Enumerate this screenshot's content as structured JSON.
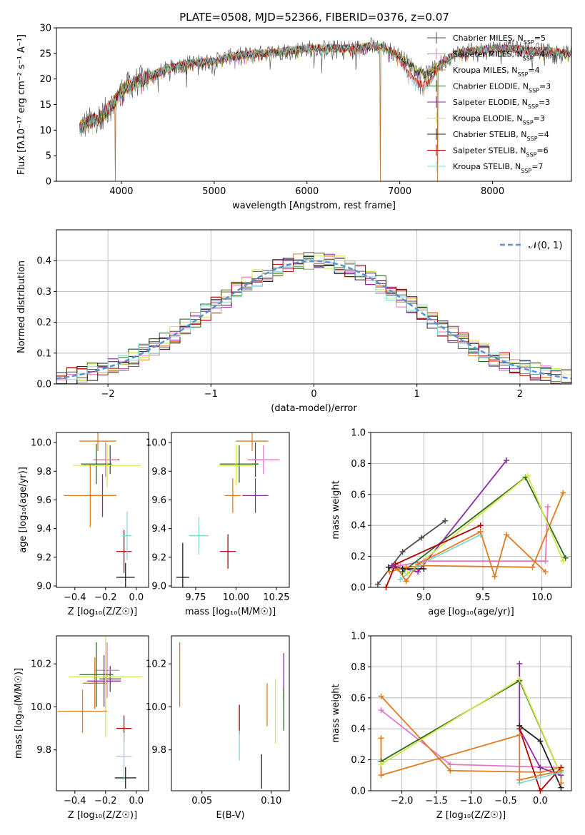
{
  "title": "PLATE=0508, MJD=52366, FIBERID=0376, z=0.07",
  "models": [
    {
      "name": "Chabrier MILES",
      "nssp": 5,
      "color": "#4d4d4d"
    },
    {
      "name": "Salpeter MILES",
      "nssp": 4,
      "color": "#e377c2"
    },
    {
      "name": "Kroupa MILES",
      "nssp": 4,
      "color": "#e07b1f"
    },
    {
      "name": "Chabrier ELODIE",
      "nssp": 3,
      "color": "#2e6b1e"
    },
    {
      "name": "Salpeter ELODIE",
      "nssp": 3,
      "color": "#8c2aa7"
    },
    {
      "name": "Kroupa ELODIE",
      "nssp": 3,
      "color": "#d2e84a"
    },
    {
      "name": "Chabrier STELIB",
      "nssp": 4,
      "color": "#222222"
    },
    {
      "name": "Salpeter STELIB",
      "nssp": 6,
      "color": "#b00000"
    },
    {
      "name": "Kroupa STELIB",
      "nssp": 7,
      "color": "#80d8d8"
    }
  ],
  "chart_data": [
    {
      "id": "spectrum",
      "type": "line",
      "xlabel": "wavelength [Angstrom, rest frame]",
      "ylabel": "Flux [fλ10⁻¹⁷ erg cm⁻² s⁻¹ A⁻¹]",
      "xlim": [
        3300,
        8850
      ],
      "ylim": [
        0,
        30
      ],
      "xticks": [
        4000,
        5000,
        6000,
        7000,
        8000
      ],
      "yticks": [
        0,
        5,
        10,
        15,
        20,
        25,
        30
      ],
      "continuum": {
        "x": [
          3550,
          3650,
          3800,
          3900,
          4000,
          4100,
          4300,
          4500,
          4700,
          5000,
          5200,
          5500,
          5800,
          6000,
          6200,
          6500,
          6700,
          6850,
          7000,
          7100,
          7200,
          7300,
          7400,
          7600,
          7800,
          8000,
          8200,
          8400,
          8600,
          8800
        ],
        "y": [
          10.5,
          11.5,
          13.0,
          15.0,
          17.5,
          19.0,
          20.5,
          22.0,
          23.0,
          23.5,
          24.5,
          25.0,
          25.5,
          26.0,
          26.0,
          26.0,
          26.5,
          26.0,
          24.5,
          23.0,
          21.5,
          21.0,
          22.5,
          25.0,
          25.5,
          26.0,
          26.0,
          25.5,
          25.5,
          25.0
        ]
      },
      "dips": [
        {
          "x": 3934,
          "y": 0
        },
        {
          "x": 6790,
          "y": 0
        },
        {
          "x": 7410,
          "y": 0
        }
      ],
      "legend": "top-right"
    },
    {
      "id": "residuals",
      "type": "histogram",
      "xlabel": "(data-model)/error",
      "ylabel": "Normed distribution",
      "xlim": [
        -2.5,
        2.5
      ],
      "ylim": [
        0,
        0.5
      ],
      "xticks": [
        -2,
        -1,
        0,
        1,
        2
      ],
      "yticks": [
        0.0,
        0.1,
        0.2,
        0.3,
        0.4
      ],
      "bin_width": 0.1,
      "reference": {
        "name": "𝒩(0, 1)",
        "color": "#5b8fd4"
      },
      "legend": "top-right",
      "grid": true
    },
    {
      "id": "age-vs-Z",
      "type": "scatter",
      "xlabel": "Z [log₁₀(Z/Z☉)]",
      "ylabel": "age  [log₁₀(age/yr)]",
      "xlim": [
        -0.52,
        0.08
      ],
      "ylim": [
        8.99,
        10.07
      ],
      "xticks": [
        -0.4,
        -0.2,
        0.0
      ],
      "yticks": [
        9.0,
        9.2,
        9.4,
        9.6,
        9.8,
        10.0
      ],
      "points": [
        {
          "model": 0,
          "x": -0.17,
          "y": 9.88,
          "xerr": 0.06,
          "yerr": 0.1
        },
        {
          "model": 1,
          "x": -0.2,
          "y": 9.88,
          "xerr": 0.08,
          "yerr": 0.12
        },
        {
          "model": 2,
          "x": -0.25,
          "y": 10.01,
          "xerr": 0.12,
          "yerr": 0.07
        },
        {
          "model": 3,
          "x": -0.26,
          "y": 9.85,
          "xerr": 0.1,
          "yerr": 0.14
        },
        {
          "model": 4,
          "x": -0.22,
          "y": 9.63,
          "xerr": 0.09,
          "yerr": 0.15
        },
        {
          "model": 5,
          "x": -0.19,
          "y": 9.84,
          "xerr": 0.22,
          "yerr": 0.15
        },
        {
          "model": 6,
          "x": -0.07,
          "y": 9.06,
          "xerr": 0.06,
          "yerr": 0.1
        },
        {
          "model": 7,
          "x": -0.08,
          "y": 9.24,
          "xerr": 0.05,
          "yerr": 0.15
        },
        {
          "model": 8,
          "x": -0.06,
          "y": 9.35,
          "xerr": 0.03,
          "yerr": 0.17
        },
        {
          "model": 2,
          "x": -0.3,
          "y": 9.63,
          "xerr": 0.17,
          "yerr": 0.22
        }
      ]
    },
    {
      "id": "age-vs-mass",
      "type": "scatter",
      "xlabel": "mass [log₁₀(M/M☉)]",
      "ylabel": "",
      "xlim": [
        9.6,
        10.33
      ],
      "ylim": [
        8.99,
        10.07
      ],
      "xticks": [
        9.75,
        10.0,
        10.25
      ],
      "yticks": [
        9.0,
        9.2,
        9.4,
        9.6,
        9.8,
        10.0
      ],
      "points": [
        {
          "model": 0,
          "x": 10.12,
          "y": 9.88,
          "xerr": 0.04,
          "yerr": 0.12
        },
        {
          "model": 1,
          "x": 10.17,
          "y": 9.88,
          "xerr": 0.1,
          "yerr": 0.1
        },
        {
          "model": 2,
          "x": 10.1,
          "y": 10.01,
          "xerr": 0.1,
          "yerr": 0.07
        },
        {
          "model": 3,
          "x": 10.02,
          "y": 9.85,
          "xerr": 0.12,
          "yerr": 0.13
        },
        {
          "model": 4,
          "x": 10.12,
          "y": 9.63,
          "xerr": 0.08,
          "yerr": 0.12
        },
        {
          "model": 5,
          "x": 10.0,
          "y": 9.84,
          "xerr": 0.11,
          "yerr": 0.14
        },
        {
          "model": 6,
          "x": 9.67,
          "y": 9.06,
          "xerr": 0.04,
          "yerr": 0.24
        },
        {
          "model": 7,
          "x": 9.95,
          "y": 9.24,
          "xerr": 0.05,
          "yerr": 0.12
        },
        {
          "model": 8,
          "x": 9.77,
          "y": 9.35,
          "xerr": 0.06,
          "yerr": 0.13
        },
        {
          "model": 2,
          "x": 9.98,
          "y": 9.63,
          "xerr": 0.05,
          "yerr": 0.12
        }
      ]
    },
    {
      "id": "mass-weight-vs-age",
      "type": "line",
      "xlabel": "age  [log₁₀(age/yr)]",
      "ylabel": "mass weight",
      "xlim": [
        8.55,
        10.25
      ],
      "ylim": [
        0,
        1.0
      ],
      "xticks": [
        9.0,
        9.5,
        10.0
      ],
      "yticks": [
        0.0,
        0.2,
        0.4,
        0.6,
        0.8,
        1.0
      ],
      "grid": true,
      "series": [
        {
          "model": 0,
          "x": [
            8.61,
            8.82,
            8.98,
            9.18
          ],
          "y": [
            0.02,
            0.23,
            0.32,
            0.43
          ]
        },
        {
          "model": 1,
          "x": [
            8.73,
            8.8,
            9.0,
            10.03,
            10.05
          ],
          "y": [
            0.13,
            0.14,
            0.17,
            0.17,
            0.52
          ]
        },
        {
          "model": 2,
          "x": [
            8.71,
            8.85,
            9.0,
            9.92,
            10.18
          ],
          "y": [
            0.1,
            0.13,
            0.14,
            0.13,
            0.61
          ]
        },
        {
          "model": 3,
          "x": [
            8.82,
            9.86,
            10.2
          ],
          "y": [
            0.1,
            0.71,
            0.19
          ]
        },
        {
          "model": 4,
          "x": [
            8.73,
            8.95,
            9.7
          ],
          "y": [
            0.14,
            0.1,
            0.82
          ]
        },
        {
          "model": 5,
          "x": [
            8.86,
            9.88,
            10.18
          ],
          "y": [
            0.09,
            0.72,
            0.17
          ]
        },
        {
          "model": 6,
          "x": [
            8.7,
            8.82,
            9.0
          ],
          "y": [
            0.13,
            0.12,
            0.12
          ]
        },
        {
          "model": 7,
          "x": [
            8.68,
            8.76,
            9.48
          ],
          "y": [
            0.0,
            0.15,
            0.4
          ]
        },
        {
          "model": 8,
          "x": [
            8.8,
            8.95,
            9.48
          ],
          "y": [
            0.05,
            0.14,
            0.34
          ]
        },
        {
          "model": 2,
          "x": [
            8.78,
            8.85,
            8.95,
            9.48,
            9.6,
            9.7,
            10.03
          ],
          "y": [
            0.12,
            0.04,
            0.15,
            0.36,
            0.07,
            0.34,
            0.1
          ]
        }
      ]
    },
    {
      "id": "mass-vs-Z",
      "type": "scatter",
      "xlabel": "Z [log₁₀(Z/Z☉)]",
      "ylabel": "mass [log₁₀(M/M☉)]",
      "xlim": [
        -0.52,
        0.08
      ],
      "ylim": [
        9.61,
        10.33
      ],
      "xticks": [
        -0.4,
        -0.2,
        0.0
      ],
      "yticks": [
        9.8,
        10.0,
        10.2
      ],
      "points": [
        {
          "model": 0,
          "x": -0.17,
          "y": 10.13,
          "xerr": 0.07,
          "yerr": 0.06
        },
        {
          "model": 1,
          "x": -0.19,
          "y": 10.17,
          "xerr": 0.08,
          "yerr": 0.13
        },
        {
          "model": 2,
          "x": -0.27,
          "y": 10.11,
          "xerr": 0.08,
          "yerr": 0.12
        },
        {
          "model": 3,
          "x": -0.26,
          "y": 10.15,
          "xerr": 0.11,
          "yerr": 0.15
        },
        {
          "model": 4,
          "x": -0.21,
          "y": 10.12,
          "xerr": 0.11,
          "yerr": 0.12
        },
        {
          "model": 5,
          "x": -0.2,
          "y": 10.14,
          "xerr": 0.24,
          "yerr": 0.28
        },
        {
          "model": 6,
          "x": -0.07,
          "y": 9.67,
          "xerr": 0.07,
          "yerr": 0.05
        },
        {
          "model": 7,
          "x": -0.08,
          "y": 9.9,
          "xerr": 0.05,
          "yerr": 0.06
        },
        {
          "model": 8,
          "x": -0.08,
          "y": 9.77,
          "xerr": 0.05,
          "yerr": 0.11
        },
        {
          "model": 2,
          "x": -0.35,
          "y": 9.98,
          "xerr": 0.16,
          "yerr": 0.1
        }
      ]
    },
    {
      "id": "mass-vs-EBV",
      "type": "scatter",
      "xlabel": "E(B-V)",
      "ylabel": "",
      "xlim": [
        0.028,
        0.113
      ],
      "ylim": [
        9.61,
        10.33
      ],
      "xticks": [
        0.05,
        0.1
      ],
      "yticks": [
        9.8,
        10.0,
        10.2
      ],
      "points": [
        {
          "model": 2,
          "x": 0.034,
          "y": 10.15,
          "yerr": 0.15
        },
        {
          "model": 7,
          "x": 0.077,
          "y": 9.94,
          "yerr": 0.07
        },
        {
          "model": 8,
          "x": 0.077,
          "y": 9.82,
          "yerr": 0.07
        },
        {
          "model": 6,
          "x": 0.093,
          "y": 9.7,
          "yerr": 0.08
        },
        {
          "model": 2,
          "x": 0.097,
          "y": 10.01,
          "yerr": 0.1
        },
        {
          "model": 5,
          "x": 0.103,
          "y": 9.98,
          "yerr": 0.15
        },
        {
          "model": 4,
          "x": 0.109,
          "y": 10.14,
          "yerr": 0.11
        },
        {
          "model": 3,
          "x": 0.109,
          "y": 9.99,
          "yerr": 0.1
        }
      ]
    },
    {
      "id": "mass-weight-vs-Z",
      "type": "line",
      "xlabel": "Z [log₁₀(Z/Z☉)]",
      "ylabel": "mass weight",
      "xlim": [
        -2.45,
        0.45
      ],
      "ylim": [
        0,
        1.0
      ],
      "xticks": [
        -2.0,
        -1.5,
        -1.0,
        -0.5,
        0.0
      ],
      "yticks": [
        0.0,
        0.2,
        0.4,
        0.6,
        0.8,
        1.0
      ],
      "grid": true,
      "series": [
        {
          "model": 1,
          "x": [
            -2.3,
            -1.3,
            0.3
          ],
          "y": [
            0.52,
            0.17,
            0.15
          ]
        },
        {
          "model": 2,
          "x": [
            -2.3,
            -1.3,
            0.0,
            0.3
          ],
          "y": [
            0.61,
            0.13,
            0.12,
            0.15
          ]
        },
        {
          "model": 3,
          "x": [
            -2.3,
            -0.3,
            0.3
          ],
          "y": [
            0.19,
            0.71,
            0.1
          ]
        },
        {
          "model": 5,
          "x": [
            -2.3,
            -0.3,
            0.3
          ],
          "y": [
            0.17,
            0.72,
            0.1
          ]
        },
        {
          "model": 4,
          "x": [
            -0.3,
            -0.3,
            0.0,
            0.3
          ],
          "y": [
            0.82,
            0.4,
            0.15,
            0.1
          ]
        },
        {
          "model": 6,
          "x": [
            -0.3,
            0.0,
            0.3
          ],
          "y": [
            0.42,
            0.32,
            0.02
          ]
        },
        {
          "model": 7,
          "x": [
            -0.3,
            0.0,
            0.3
          ],
          "y": [
            0.4,
            0.0,
            0.15
          ]
        },
        {
          "model": 8,
          "x": [
            -0.3,
            0.3
          ],
          "y": [
            0.05,
            0.12
          ]
        },
        {
          "model": 2,
          "x": [
            -2.3,
            -2.3,
            -0.3,
            -0.3,
            0.3,
            0.3
          ],
          "y": [
            0.34,
            0.1,
            0.36,
            0.07,
            0.13,
            0.05
          ]
        }
      ]
    }
  ]
}
